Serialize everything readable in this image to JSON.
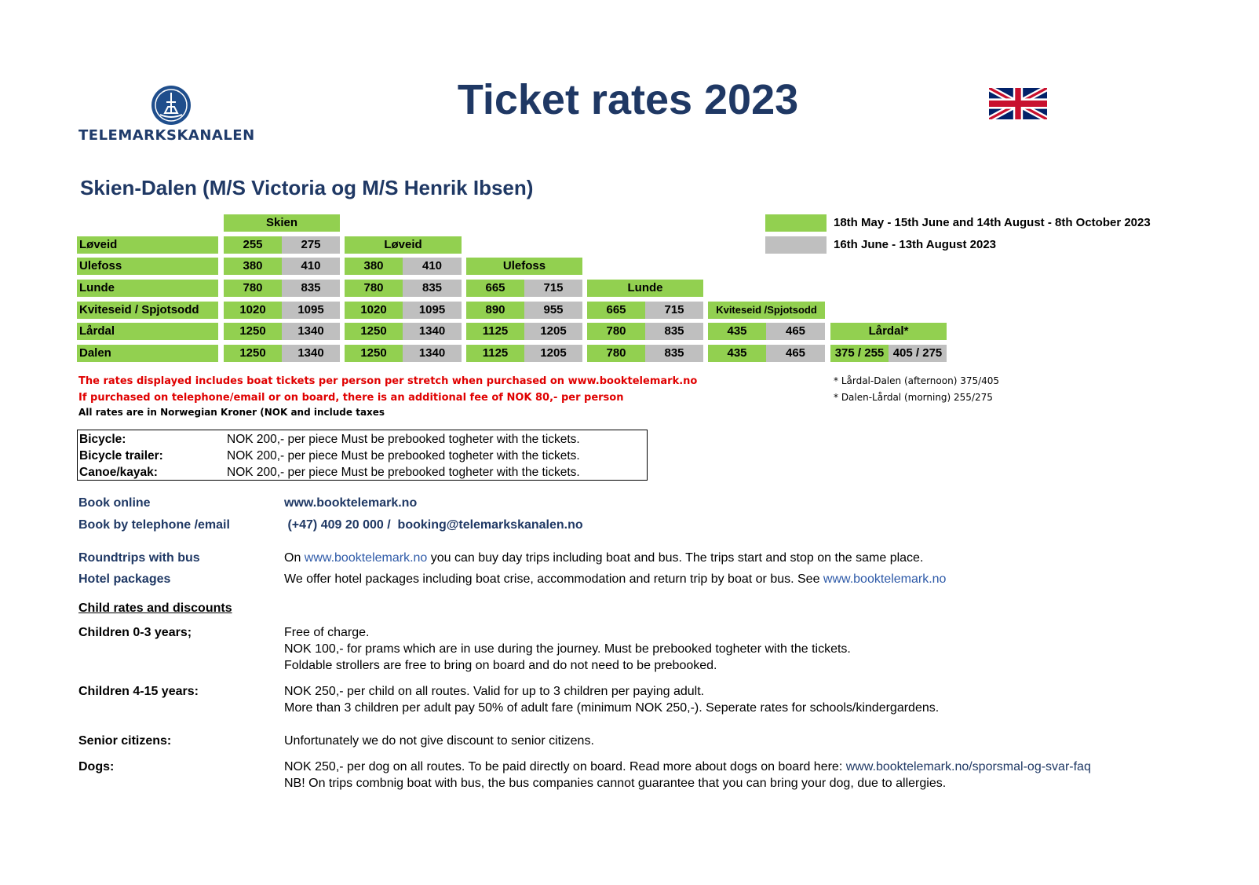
{
  "header": {
    "logo_text": "TELEMARKSKANALEN",
    "title": "Ticket rates 2023",
    "flag": "uk-flag-icon"
  },
  "subtitle": "Skien-Dalen (M/S Victoria og M/S Henrik Ibsen)",
  "legend": {
    "green_label": "18th May - 15th June and 14th August - 8th October 2023",
    "grey_label": "16th June - 13th August 2023",
    "green_color": "#92d050",
    "grey_color": "#bfbfbf"
  },
  "table": {
    "headers": {
      "skien": "Skien",
      "loveid": "Løveid",
      "ulefoss": "Ulefoss",
      "lunde": "Lunde",
      "kviteseid": "Kviteseid /Spjotsodd",
      "lardal": "Lårdal*"
    },
    "rows": [
      {
        "label": "Løveid",
        "values": [
          "255",
          "275"
        ]
      },
      {
        "label": "Ulefoss",
        "values": [
          "380",
          "410",
          "380",
          "410"
        ]
      },
      {
        "label": "Lunde",
        "values": [
          "780",
          "835",
          "780",
          "835",
          "665",
          "715"
        ]
      },
      {
        "label": "Kviteseid / Spjotsodd",
        "values": [
          "1020",
          "1095",
          "1020",
          "1095",
          "890",
          "955",
          "665",
          "715"
        ]
      },
      {
        "label": "Lårdal",
        "values": [
          "1250",
          "1340",
          "1250",
          "1340",
          "1125",
          "1205",
          "780",
          "835",
          "435",
          "465"
        ]
      },
      {
        "label": "Dalen",
        "values": [
          "1250",
          "1340",
          "1250",
          "1340",
          "1125",
          "1205",
          "780",
          "835",
          "435",
          "465",
          "375 / 255",
          "405 / 275"
        ]
      }
    ]
  },
  "notes": {
    "red_1": "The rates displayed includes boat tickets per person per stretch when purchased on www.booktelemark.no",
    "red_2": "If purchased on telephone/email or on board, there is an additional fee of NOK 80,- per person",
    "black_1": "All rates are in Norwegian Kroner (NOK and include taxes",
    "lardal_1": "* Lårdal-Dalen (afternoon) 375/405",
    "lardal_2": "* Dalen-Lårdal (morning) 255/275"
  },
  "extras": [
    {
      "label": "Bicycle:",
      "text": "NOK 200,- per piece  Must be prebooked togheter with the tickets."
    },
    {
      "label": "Bicycle trailer:",
      "text": "NOK 200,- per piece  Must be prebooked togheter with the tickets."
    },
    {
      "label": "Canoe/kayak:",
      "text": "NOK 200,- per piece  Must be prebooked togheter with the tickets."
    }
  ],
  "booking": {
    "online_label": "Book online",
    "online_value": "www.booktelemark.no",
    "phone_label": "Book by telephone /email",
    "phone_value": " (+47) 409 20 000 /  booking@telemarkskanalen.no",
    "roundtrips_label": "Roundtrips with bus",
    "roundtrips_pre": "On ",
    "roundtrips_link": "www.booktelemark.no",
    "roundtrips_post": " you can buy day trips including boat and bus. The trips start and stop on the same place.",
    "hotel_label": "Hotel packages",
    "hotel_pre": "We offer hotel packages including boat crise, accommodation and return trip by boat or bus. See ",
    "hotel_link": "www.booktelemark.no"
  },
  "discounts": {
    "heading": "Child rates and discounts",
    "child03_label": "Children 0-3 years;",
    "child03_lines": [
      "Free of charge.",
      "NOK 100,- for prams which are in use during the journey. Must be prebooked togheter with the tickets.",
      "Foldable strollers are free to bring on board and do not need to be prebooked."
    ],
    "child415_label": "Children 4-15 years:",
    "child415_lines": [
      "NOK 250,- per child on all routes. Valid for up to 3 children per paying adult.",
      "More than 3  children per adult pay 50% of adult fare (minimum NOK 250,-). Seperate rates for schools/kindergardens."
    ],
    "senior_label": "Senior citizens:",
    "senior_text": "Unfortunately we do not give discount to senior citizens.",
    "dogs_label": "Dogs:",
    "dogs_pre": "NOK 250,- per dog on all routes. To be paid directly on board. Read more about dogs on board here: ",
    "dogs_link": "www.booktelemark.no/sporsmal-og-svar-faq",
    "dogs_line2": "NB! On trips combnig boat with bus, the bus companies cannot guarantee that you can bring your dog, due to allergies."
  }
}
